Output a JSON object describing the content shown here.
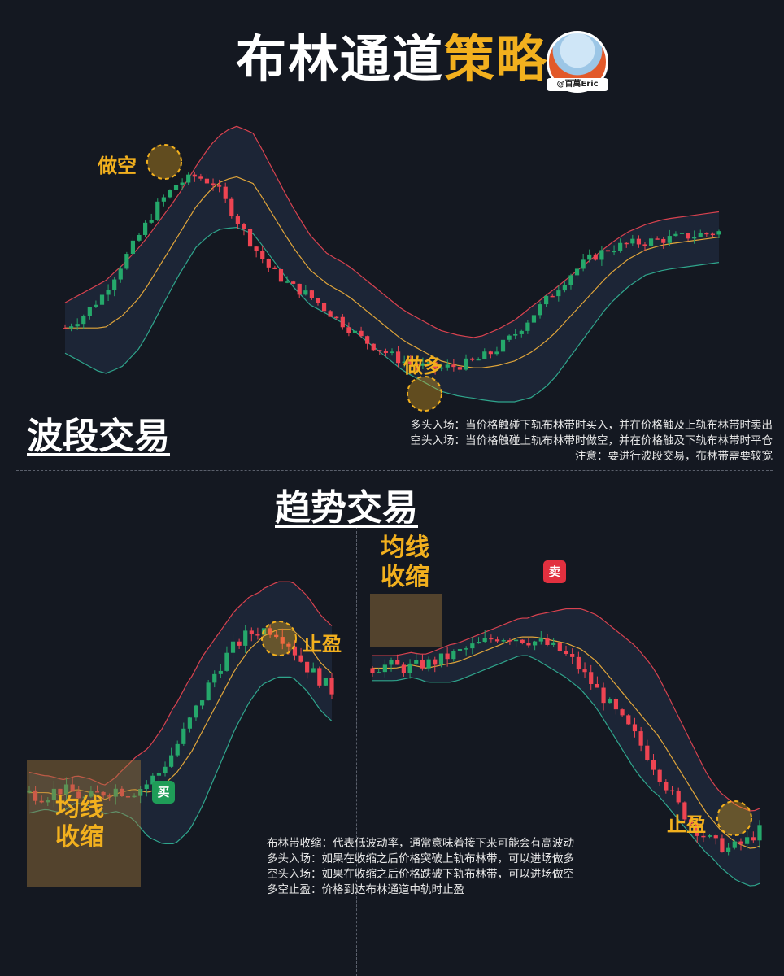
{
  "title": {
    "part1": "布林通道",
    "part2": "策略"
  },
  "handle": "@百萬Eric",
  "colors": {
    "up": "#25a86b",
    "down": "#ee4452",
    "upper_band": "#d8424f",
    "middle_band": "#e0a53a",
    "lower_band": "#2fa58c",
    "accent": "#f2b01e"
  },
  "swing": {
    "heading": "波段交易",
    "label_short": "做空",
    "label_long": "做多",
    "notes": [
      "多头入场：当价格触碰下轨布林带时买入，并在价格触及上轨布林带时卖出",
      "空头入场：当价格触碰上轨布林带时做空，并在价格触及下轨布林带时平仓",
      "注意：要进行波段交易，布林带需要较宽"
    ]
  },
  "trend": {
    "heading": "趋势交易",
    "left_squeeze_label": "均线收缩",
    "left_buy": "买",
    "left_take_profit": "止盈",
    "right_squeeze_label": "均线收缩",
    "right_sell": "卖",
    "right_take_profit": "止盈",
    "notes": [
      "布林带收缩：代表低波动率，通常意味着接下来可能会有高波动",
      "多头入场：如果在收缩之后价格突破上轨布林带，可以进场做多",
      "空头入场：如果在收缩之后价格跌破下轨布林带，可以进场做空",
      "多空止盈：价格到达布林通道中轨时止盈"
    ]
  },
  "chart_data": [
    {
      "type": "candlestick",
      "name": "swing",
      "price_path": [
        35,
        40,
        48,
        60,
        72,
        84,
        92,
        95,
        92,
        80,
        68,
        58,
        52,
        48,
        42,
        36,
        30,
        26,
        22,
        20,
        19,
        20,
        22,
        26,
        32,
        40,
        48,
        56,
        62,
        66,
        68,
        69,
        70,
        71,
        72,
        73
      ],
      "band_width": [
        10,
        14,
        18,
        20,
        20,
        18,
        16,
        16,
        18,
        20,
        20,
        18,
        16,
        14,
        12,
        12,
        12,
        12,
        12,
        12,
        12,
        12,
        12,
        14,
        16,
        18,
        18,
        16,
        14,
        12,
        11,
        10,
        10,
        10,
        10,
        10
      ],
      "ylim": [
        0,
        110
      ]
    },
    {
      "type": "candlestick",
      "name": "trend-long",
      "price_path": [
        30,
        29,
        31,
        30,
        28,
        30,
        31,
        30,
        32,
        36,
        42,
        50,
        58,
        66,
        72,
        76,
        78,
        78,
        74,
        68,
        64,
        60
      ],
      "band_width": [
        6,
        5,
        5,
        4,
        4,
        4,
        5,
        8,
        12,
        16,
        20,
        22,
        22,
        20,
        18,
        16,
        14,
        14,
        14,
        14,
        14,
        14
      ],
      "ylim": [
        0,
        110
      ]
    },
    {
      "type": "candlestick",
      "name": "trend-short",
      "price_path": [
        70,
        71,
        70,
        71,
        72,
        74,
        76,
        78,
        80,
        80,
        79,
        78,
        76,
        72,
        66,
        60,
        54,
        48,
        40,
        32,
        24,
        18,
        14,
        12,
        14,
        18
      ],
      "band_width": [
        4,
        4,
        4,
        4,
        5,
        6,
        6,
        6,
        6,
        6,
        6,
        8,
        10,
        12,
        14,
        16,
        18,
        20,
        20,
        18,
        16,
        14,
        12,
        12,
        12,
        12
      ],
      "ylim": [
        0,
        110
      ]
    }
  ]
}
